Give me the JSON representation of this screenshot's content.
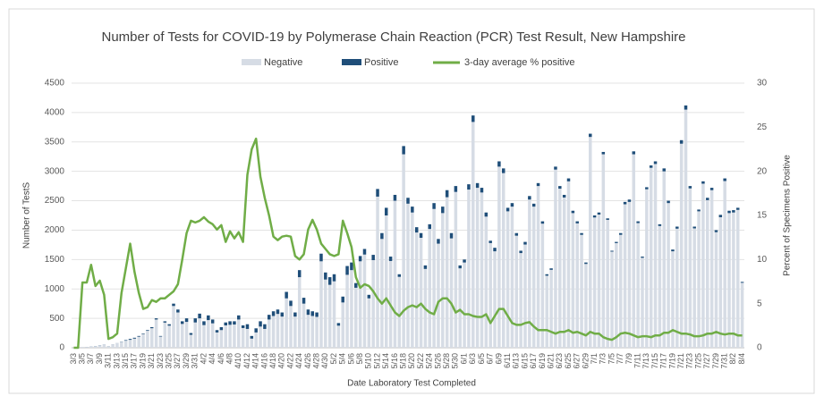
{
  "chart_data": {
    "type": "bar",
    "title": "Number of Tests for COVID-19 by Polymerase Chain Reaction (PCR) Test Result, New Hampshire",
    "x_label": "Date Laboratory Test Completed",
    "y_label": "Number of TestS",
    "y2_label": "Percent of Specimens Positive",
    "stacked": true,
    "grid": true,
    "legend": "top",
    "ylim": [
      0,
      4500
    ],
    "yticks": [
      0,
      500,
      1000,
      1500,
      2000,
      2500,
      3000,
      3500,
      4000,
      4500
    ],
    "y2lim": [
      0,
      30
    ],
    "y2ticks": [
      0,
      5,
      10,
      15,
      20,
      25,
      30
    ],
    "categories": [
      "3/3",
      null,
      "3/5",
      null,
      "3/7",
      null,
      "3/9",
      null,
      "3/11",
      null,
      "3/13",
      null,
      "3/15",
      null,
      "3/17",
      null,
      "3/19",
      null,
      "3/21",
      null,
      "3/23",
      null,
      "3/25",
      null,
      "3/27",
      null,
      "3/29",
      null,
      "3/31",
      null,
      "4/2",
      null,
      "4/4",
      null,
      "4/6",
      null,
      "4/8",
      null,
      "4/10",
      null,
      "4/12",
      null,
      "4/14",
      null,
      "4/16",
      null,
      "4/18",
      null,
      "4/20",
      null,
      "4/22",
      null,
      "4/24",
      null,
      "4/26",
      null,
      "4/28",
      null,
      "4/30",
      null,
      "5/2",
      null,
      "5/4",
      null,
      "5/6",
      null,
      "5/8",
      null,
      "5/10",
      null,
      "5/12",
      null,
      "5/14",
      null,
      "5/16",
      null,
      "5/18",
      null,
      "5/20",
      null,
      "5/22",
      null,
      "5/24",
      null,
      "5/26",
      null,
      "5/28",
      null,
      "5/30",
      null,
      "6/1",
      null,
      "6/3",
      null,
      "6/5",
      null,
      "6/7",
      null,
      "6/9",
      null,
      "6/11",
      null,
      "6/13",
      null,
      "6/15",
      null,
      "6/17",
      null,
      "6/19",
      null,
      "6/21",
      null,
      "6/23",
      null,
      "6/25",
      null,
      "6/27",
      null,
      "6/29",
      null,
      "7/1",
      null,
      "7/3",
      null,
      "7/5",
      null,
      "7/7",
      null,
      "7/9",
      null,
      "7/11",
      null,
      "7/13",
      null,
      "7/15",
      null,
      "7/17",
      null,
      "7/19",
      null,
      "7/21",
      null,
      "7/23",
      null,
      "7/25",
      null,
      "7/27",
      null,
      "7/29",
      null,
      "7/31",
      null,
      "8/2",
      null,
      "8/4"
    ],
    "series": [
      {
        "name": "Negative",
        "color": "#d6dce5",
        "values": [
          0,
          5,
          9,
          14,
          18,
          28,
          37,
          47,
          29,
          59,
          79,
          95,
          120,
          135,
          155,
          188,
          230,
          288,
          332,
          480,
          190,
          428,
          375,
          710,
          600,
          405,
          440,
          220,
          430,
          500,
          385,
          470,
          415,
          260,
          300,
          380,
          390,
          395,
          480,
          335,
          320,
          155,
          260,
          360,
          320,
          480,
          540,
          575,
          530,
          840,
          710,
          530,
          1200,
          750,
          560,
          540,
          525,
          1470,
          1160,
          1070,
          1130,
          375,
          770,
          1240,
          1320,
          1020,
          1470,
          1585,
          840,
          1490,
          2570,
          1850,
          2250,
          1475,
          2500,
          1205,
          3290,
          2450,
          2300,
          1960,
          1870,
          1340,
          2020,
          2360,
          1770,
          2290,
          2560,
          1860,
          2650,
          1350,
          1450,
          2690,
          3840,
          2720,
          2640,
          2230,
          1780,
          1640,
          3080,
          2970,
          2320,
          2400,
          1905,
          1610,
          1755,
          2520,
          2400,
          2750,
          2110,
          1225,
          1325,
          3030,
          2705,
          2555,
          2830,
          2290,
          2115,
          1920,
          1425,
          3585,
          2215,
          2265,
          3290,
          2175,
          1635,
          1780,
          1920,
          2440,
          2480,
          3290,
          2120,
          1530,
          2695,
          3060,
          3125,
          2070,
          3000,
          2460,
          1640,
          2025,
          3470,
          4050,
          2710,
          2030,
          2320,
          2790,
          2510,
          2680,
          1965,
          2220,
          2835,
          2290,
          2300,
          2345,
          1105
        ]
      },
      {
        "name": "Positive",
        "color": "#1f4e79",
        "values": [
          0,
          0,
          1,
          1,
          2,
          2,
          3,
          3,
          1,
          1,
          1,
          5,
          10,
          15,
          15,
          12,
          10,
          12,
          18,
          20,
          10,
          22,
          25,
          40,
          50,
          45,
          60,
          30,
          70,
          80,
          65,
          80,
          65,
          40,
          50,
          50,
          60,
          55,
          70,
          45,
          80,
          45,
          70,
          90,
          80,
          80,
          80,
          75,
          70,
          110,
          90,
          70,
          120,
          100,
          90,
          80,
          75,
          130,
          120,
          130,
          120,
          45,
          100,
          150,
          130,
          80,
          90,
          95,
          60,
          90,
          130,
          100,
          130,
          75,
          100,
          45,
          140,
          100,
          100,
          90,
          80,
          60,
          80,
          100,
          80,
          110,
          120,
          90,
          100,
          50,
          50,
          90,
          110,
          80,
          80,
          70,
          40,
          60,
          90,
          80,
          60,
          60,
          45,
          40,
          45,
          60,
          50,
          50,
          40,
          25,
          25,
          50,
          45,
          45,
          50,
          40,
          35,
          30,
          25,
          55,
          35,
          35,
          40,
          25,
          15,
          20,
          30,
          40,
          40,
          50,
          30,
          20,
          35,
          40,
          45,
          30,
          50,
          40,
          30,
          35,
          60,
          70,
          40,
          30,
          30,
          40,
          40,
          40,
          35,
          40,
          45,
          40,
          40,
          35,
          15
        ]
      },
      {
        "name": "3-day average % positive",
        "color": "#70ad47",
        "type": "line",
        "axis": "y2",
        "values": [
          0,
          0,
          7.4,
          7.4,
          9.4,
          7,
          7.6,
          6,
          1,
          1.2,
          1.6,
          6.2,
          9,
          11.8,
          8.6,
          6.2,
          4.4,
          4.6,
          5.4,
          5.2,
          5.6,
          5.6,
          6,
          6.4,
          7.2,
          10,
          13,
          14.4,
          14.2,
          14.4,
          14.8,
          14.3,
          14,
          13.4,
          13.9,
          12,
          13.2,
          12.4,
          13.1,
          12,
          19.6,
          22.5,
          23.7,
          19.4,
          17,
          15,
          12.6,
          12.2,
          12.6,
          12.7,
          12.6,
          10.4,
          10,
          10.6,
          13.4,
          14.5,
          13.4,
          11.8,
          11.2,
          10.6,
          10.4,
          10.6,
          14.4,
          13,
          11.4,
          8,
          6.8,
          7.2,
          7,
          6.4,
          5.6,
          5,
          5.6,
          4.8,
          4,
          3.6,
          4.2,
          4.6,
          4.8,
          4.6,
          5,
          4.4,
          4,
          3.8,
          5.2,
          5.6,
          5.6,
          5,
          4,
          4.3,
          3.8,
          3.8,
          3.6,
          3.5,
          3.5,
          3.8,
          2.8,
          3.6,
          4.4,
          4.4,
          3.6,
          2.8,
          2.6,
          2.6,
          2.8,
          2.9,
          2.4,
          2,
          2,
          2,
          1.8,
          1.6,
          1.8,
          1.8,
          2,
          1.7,
          1.8,
          1.6,
          1.4,
          1.8,
          1.6,
          1.6,
          1.2,
          1,
          0.9,
          1.2,
          1.6,
          1.7,
          1.6,
          1.4,
          1.2,
          1.3,
          1.3,
          1.2,
          1.4,
          1.4,
          1.7,
          1.7,
          2,
          1.8,
          1.6,
          1.6,
          1.5,
          1.3,
          1.3,
          1.4,
          1.6,
          1.6,
          1.8,
          1.6,
          1.5,
          1.6,
          1.6,
          1.4,
          1.4
        ]
      }
    ]
  }
}
